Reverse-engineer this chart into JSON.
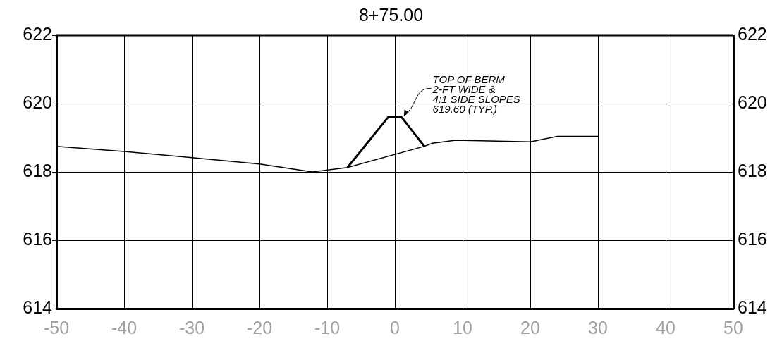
{
  "chart_data": {
    "type": "line",
    "title": "8+75.00",
    "series": [
      {
        "color": "#000000",
        "x": [
          -50,
          -40,
          -30,
          -20,
          -12.2,
          -7,
          4.35,
          5.55,
          9,
          20,
          24,
          30
        ],
        "values": [
          618.75,
          618.6,
          618.42,
          618.23,
          618.0,
          618.13,
          618.75,
          618.84,
          618.93,
          618.88,
          619.04,
          619.04
        ]
      },
      {
        "color": "#000000",
        "x": [
          -7,
          -1,
          1,
          4.35
        ],
        "values": [
          618.13,
          619.6,
          619.6,
          618.75
        ]
      }
    ],
    "xlim": [
      -50,
      50
    ],
    "xticks": [
      -50,
      -40,
      -30,
      -20,
      -10,
      0,
      10,
      20,
      30,
      40,
      50
    ],
    "ylim": [
      614,
      622
    ],
    "yticks": [
      614,
      616,
      618,
      620,
      622
    ],
    "y2lim": [
      614,
      622
    ],
    "y2ticks": [
      614,
      616,
      618,
      620,
      622
    ],
    "grid": true,
    "legend": false,
    "marker": "none",
    "line_style": "solid",
    "annotations": [
      {
        "text": "TOP OF BERM\n2-FT WIDE &\n4:1 SIDE SLOPES\n619.60 (TYP.)",
        "x": 1,
        "y": 619.6
      }
    ]
  }
}
